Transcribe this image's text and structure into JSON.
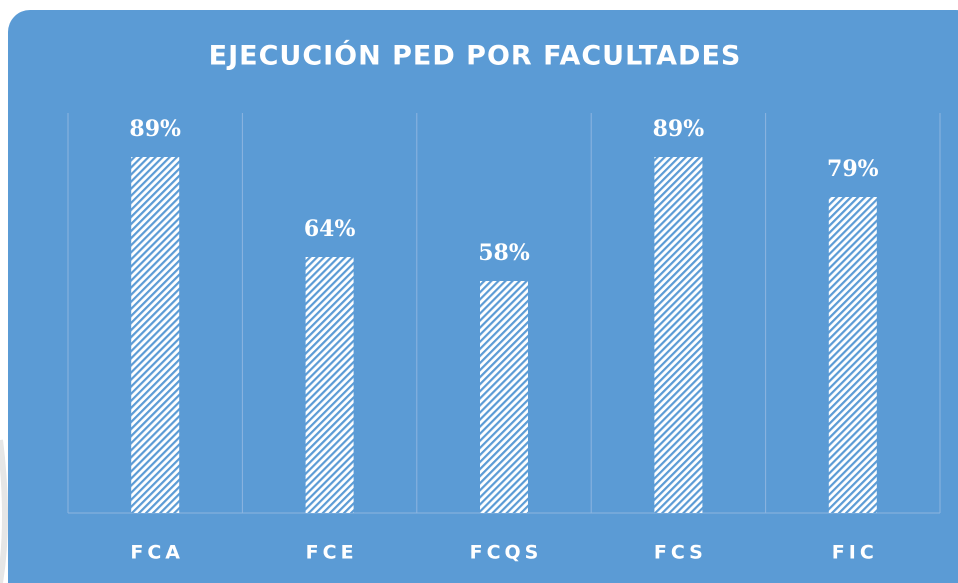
{
  "chart_data": {
    "type": "bar",
    "title": "EJECUCIÓN PED POR FACULTADES",
    "categories": [
      "FCA",
      "FCE",
      "FCQS",
      "FCS",
      "FIC"
    ],
    "values": [
      89,
      64,
      58,
      89,
      79
    ],
    "value_labels": [
      "89%",
      "64%",
      "58%",
      "89%",
      "79%"
    ],
    "color": "#5b9bd5",
    "ylim": [
      0,
      100
    ]
  }
}
